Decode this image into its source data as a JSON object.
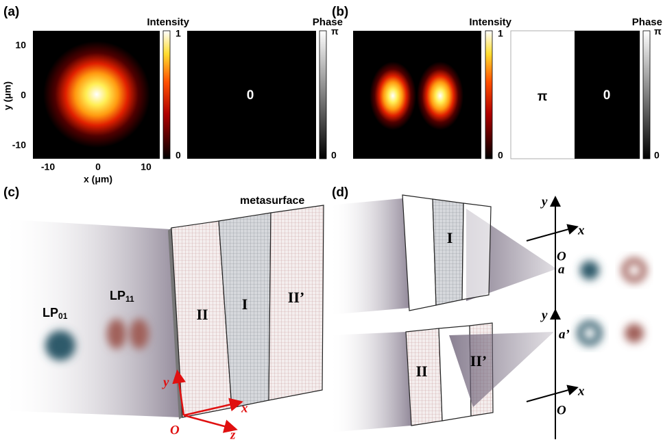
{
  "panel_a": {
    "label": "(a)",
    "intensity": {
      "title": "Intensity",
      "colorbar_max": "1",
      "colorbar_min": "0"
    },
    "phase": {
      "title": "Phase",
      "colorbar_max": "π",
      "colorbar_min": "0",
      "value_label": "0"
    },
    "y_axis": {
      "label": "y (μm)",
      "ticks": [
        "10",
        "0",
        "-10"
      ]
    },
    "x_axis": {
      "label": "x (μm)",
      "ticks": [
        "-10",
        "0",
        "10"
      ]
    }
  },
  "panel_b": {
    "label": "(b)",
    "intensity": {
      "title": "Intensity",
      "colorbar_max": "1",
      "colorbar_min": "0"
    },
    "phase": {
      "title": "Phase",
      "colorbar_max": "π",
      "colorbar_min": "0",
      "value_labels": [
        "π",
        "0"
      ]
    }
  },
  "panel_c": {
    "label": "(c)",
    "metasurface_label": "metasurface",
    "modes": [
      {
        "base": "LP",
        "subscript": "01"
      },
      {
        "base": "LP",
        "subscript": "11"
      }
    ],
    "regions": [
      "II",
      "I",
      "II’"
    ],
    "axes": {
      "x": "x",
      "y": "y",
      "z": "z",
      "origin": "O"
    }
  },
  "panel_d": {
    "label": "(d)",
    "upper": {
      "regions": [
        "I"
      ],
      "axes": {
        "x": "x",
        "y": "y",
        "origin": "O"
      },
      "point": "a"
    },
    "lower": {
      "regions": [
        "II",
        "II’"
      ],
      "axes": {
        "x": "x",
        "y": "y",
        "origin": "O"
      },
      "point": "a’"
    }
  }
}
